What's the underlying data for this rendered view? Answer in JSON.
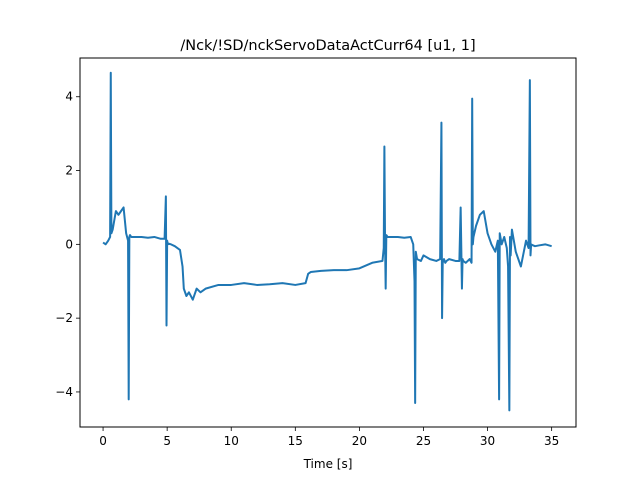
{
  "chart_data": {
    "type": "line",
    "title": "/Nck/!SD/nckServoDataActCurr64 [u1, 1]",
    "xlabel": "Time [s]",
    "ylabel": "",
    "xlim": [
      -1.8,
      36.9
    ],
    "ylim": [
      -4.95,
      5.05
    ],
    "xticks": [
      0,
      5,
      10,
      15,
      20,
      25,
      30,
      35
    ],
    "xtick_labels": [
      "0",
      "5",
      "10",
      "15",
      "20",
      "25",
      "30",
      "35"
    ],
    "yticks": [
      -4,
      -2,
      0,
      2,
      4
    ],
    "ytick_labels": [
      "−4",
      "−2",
      "0",
      "2",
      "4"
    ],
    "grid": false,
    "legend": "none",
    "series": [
      {
        "color": "#1f77b4",
        "x": [
          0.0,
          0.2,
          0.4,
          0.55,
          0.6,
          0.65,
          0.75,
          0.9,
          1.0,
          1.2,
          1.4,
          1.6,
          1.8,
          1.95,
          2.0,
          2.05,
          2.1,
          2.2,
          2.5,
          3.0,
          3.5,
          4.0,
          4.5,
          4.8,
          4.9,
          4.95,
          5.0,
          5.05,
          5.1,
          5.3,
          5.6,
          6.0,
          6.2,
          6.3,
          6.5,
          6.7,
          7.0,
          7.3,
          7.6,
          8.0,
          9.0,
          10.0,
          11.0,
          12.0,
          13.0,
          14.0,
          15.0,
          15.8,
          16.0,
          16.2,
          17.0,
          18.0,
          19.0,
          20.0,
          21.0,
          21.8,
          21.9,
          21.95,
          22.0,
          22.05,
          22.1,
          22.2,
          22.5,
          23.0,
          23.5,
          24.0,
          24.2,
          24.3,
          24.35,
          24.4,
          24.5,
          24.8,
          25.0,
          25.5,
          26.0,
          26.3,
          26.4,
          26.45,
          26.5,
          26.6,
          26.7,
          26.8,
          27.0,
          27.5,
          27.8,
          27.9,
          28.0,
          28.05,
          28.1,
          28.3,
          28.6,
          28.75,
          28.8,
          28.85,
          28.9,
          29.1,
          29.4,
          29.7,
          30.0,
          30.3,
          30.6,
          30.8,
          30.9,
          30.95,
          31.0,
          31.1,
          31.3,
          31.5,
          31.6,
          31.7,
          31.75,
          31.8,
          31.9,
          32.2,
          32.6,
          33.0,
          33.2,
          33.3,
          33.35,
          33.4,
          33.5,
          33.7,
          34.0,
          34.5,
          35.0
        ],
        "y": [
          0.05,
          0.0,
          0.1,
          0.2,
          4.65,
          0.3,
          0.4,
          0.7,
          0.9,
          0.8,
          0.9,
          1.0,
          0.3,
          0.1,
          -4.2,
          0.2,
          0.25,
          0.2,
          0.2,
          0.2,
          0.18,
          0.2,
          0.15,
          0.15,
          1.3,
          -2.2,
          0.1,
          0.0,
          0.02,
          0.0,
          -0.05,
          -0.15,
          -0.6,
          -1.2,
          -1.4,
          -1.3,
          -1.5,
          -1.2,
          -1.3,
          -1.2,
          -1.1,
          -1.1,
          -1.05,
          -1.1,
          -1.08,
          -1.05,
          -1.1,
          -1.05,
          -0.8,
          -0.75,
          -0.72,
          -0.7,
          -0.7,
          -0.65,
          -0.5,
          -0.45,
          -0.1,
          2.65,
          0.1,
          -1.2,
          0.25,
          0.2,
          0.2,
          0.2,
          0.18,
          0.2,
          0.0,
          -1.0,
          -4.3,
          -0.2,
          -0.4,
          -0.45,
          -0.3,
          -0.4,
          -0.45,
          -0.4,
          3.3,
          -2.0,
          -0.5,
          -0.4,
          -0.5,
          -0.45,
          -0.4,
          -0.45,
          -0.45,
          1.0,
          -1.2,
          -0.4,
          -0.45,
          -0.5,
          -0.4,
          -0.5,
          3.95,
          0.0,
          0.2,
          0.5,
          0.8,
          0.9,
          0.3,
          0.0,
          -0.2,
          0.1,
          -4.2,
          0.3,
          0.2,
          0.0,
          0.2,
          -0.1,
          -0.6,
          -4.5,
          0.2,
          -0.3,
          0.4,
          -0.2,
          -0.6,
          0.1,
          -0.1,
          4.45,
          -0.3,
          0.0,
          -0.02,
          -0.05,
          -0.03,
          0.0,
          -0.05
        ]
      }
    ]
  }
}
